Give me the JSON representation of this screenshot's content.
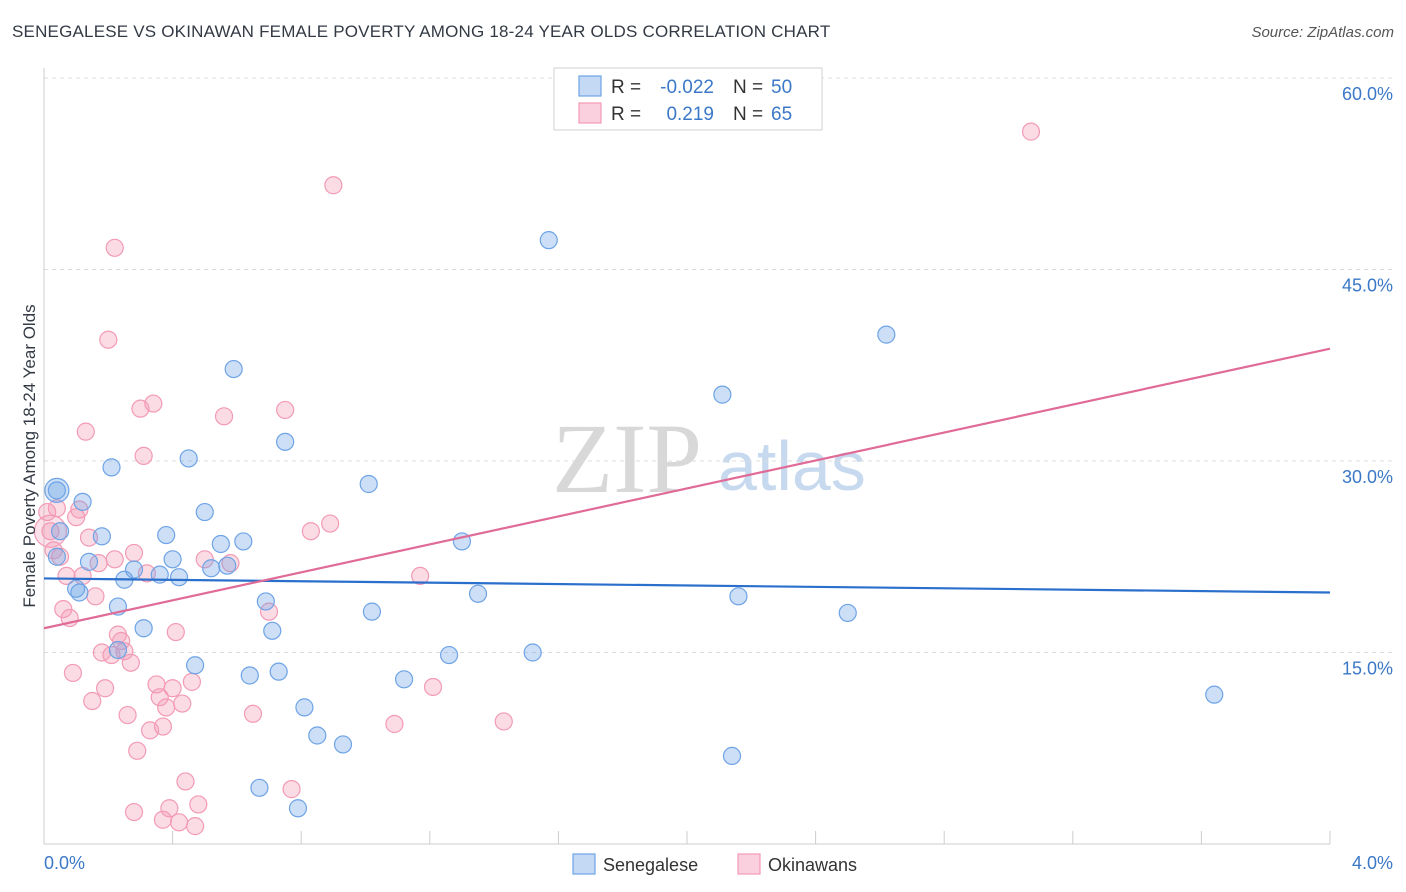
{
  "title": "SENEGALESE VS OKINAWAN FEMALE POVERTY AMONG 18-24 YEAR OLDS CORRELATION CHART",
  "source": "Source: ZipAtlas.com",
  "watermark": {
    "zip": "ZIP",
    "atlas": "atlas"
  },
  "legend": {
    "rows": [
      {
        "r_label": "R =",
        "r_value": "-0.022",
        "n_label": "N =",
        "n_value": "50"
      },
      {
        "r_label": "R =",
        "r_value": "0.219",
        "n_label": "N =",
        "n_value": "65"
      }
    ]
  },
  "chart_data": {
    "type": "scatter",
    "title": "SENEGALESE VS OKINAWAN FEMALE POVERTY AMONG 18-24 YEAR OLDS CORRELATION CHART",
    "xlabel": "",
    "ylabel": "Female Poverty Among 18-24 Year Olds",
    "xlim": [
      0,
      4.0
    ],
    "ylim": [
      0,
      60
    ],
    "x_tick_labels": [
      "0.0%",
      "4.0%"
    ],
    "y_ticks": [
      15,
      30,
      45,
      60
    ],
    "y_tick_labels": [
      "15.0%",
      "30.0%",
      "45.0%",
      "60.0%"
    ],
    "grid": true,
    "colors": {
      "senegalese": "#6ea3e6",
      "okinawans": "#f39ab5",
      "senegalese_line": "#2a6fcb",
      "okinawans_line": "#e06b97"
    },
    "series": [
      {
        "name": "Senegalese",
        "trend": {
          "x0": 0.0,
          "y0": 20.8,
          "x1": 4.0,
          "y1": 19.7
        },
        "points": [
          [
            0.04,
            27.7
          ],
          [
            0.04,
            22.5
          ],
          [
            0.05,
            24.5
          ],
          [
            0.12,
            26.8
          ],
          [
            0.1,
            20.0
          ],
          [
            0.11,
            19.7
          ],
          [
            0.14,
            22.1
          ],
          [
            0.18,
            24.1
          ],
          [
            0.21,
            29.5
          ],
          [
            0.23,
            15.2
          ],
          [
            0.23,
            18.6
          ],
          [
            0.25,
            20.7
          ],
          [
            0.28,
            21.5
          ],
          [
            0.31,
            16.9
          ],
          [
            0.36,
            21.1
          ],
          [
            0.38,
            24.2
          ],
          [
            0.4,
            22.3
          ],
          [
            0.42,
            20.9
          ],
          [
            0.45,
            30.2
          ],
          [
            0.47,
            14.0
          ],
          [
            0.5,
            26.0
          ],
          [
            0.52,
            21.6
          ],
          [
            0.55,
            23.5
          ],
          [
            0.57,
            21.8
          ],
          [
            0.59,
            37.2
          ],
          [
            0.62,
            23.7
          ],
          [
            0.64,
            13.2
          ],
          [
            0.67,
            4.4
          ],
          [
            0.69,
            19.0
          ],
          [
            0.71,
            16.7
          ],
          [
            0.73,
            13.5
          ],
          [
            0.75,
            31.5
          ],
          [
            0.79,
            2.8
          ],
          [
            0.81,
            10.7
          ],
          [
            0.85,
            8.5
          ],
          [
            0.93,
            7.8
          ],
          [
            1.01,
            28.2
          ],
          [
            1.02,
            18.2
          ],
          [
            1.12,
            12.9
          ],
          [
            1.26,
            14.8
          ],
          [
            1.3,
            23.7
          ],
          [
            1.35,
            19.6
          ],
          [
            1.52,
            15.0
          ],
          [
            1.57,
            47.3
          ],
          [
            2.11,
            35.2
          ],
          [
            2.14,
            6.9
          ],
          [
            2.16,
            19.4
          ],
          [
            2.5,
            18.1
          ],
          [
            2.62,
            39.9
          ],
          [
            3.64,
            11.7
          ]
        ]
      },
      {
        "name": "Okinawans",
        "trend": {
          "x0": 0.0,
          "y0": 16.9,
          "x1": 4.0,
          "y1": 38.8
        },
        "points": [
          [
            0.01,
            26.0
          ],
          [
            0.02,
            24.5
          ],
          [
            0.03,
            23.0
          ],
          [
            0.04,
            26.3
          ],
          [
            0.05,
            22.5
          ],
          [
            0.06,
            18.4
          ],
          [
            0.07,
            21.0
          ],
          [
            0.08,
            17.7
          ],
          [
            0.09,
            13.4
          ],
          [
            0.1,
            25.6
          ],
          [
            0.11,
            26.2
          ],
          [
            0.12,
            21.0
          ],
          [
            0.13,
            32.3
          ],
          [
            0.14,
            24.0
          ],
          [
            0.15,
            11.2
          ],
          [
            0.16,
            19.4
          ],
          [
            0.17,
            22.0
          ],
          [
            0.18,
            15.0
          ],
          [
            0.19,
            12.2
          ],
          [
            0.2,
            39.5
          ],
          [
            0.21,
            14.8
          ],
          [
            0.22,
            46.7
          ],
          [
            0.22,
            22.3
          ],
          [
            0.23,
            16.4
          ],
          [
            0.24,
            15.9
          ],
          [
            0.25,
            15.1
          ],
          [
            0.26,
            10.1
          ],
          [
            0.27,
            14.2
          ],
          [
            0.28,
            22.8
          ],
          [
            0.29,
            7.3
          ],
          [
            0.28,
            2.5
          ],
          [
            0.3,
            34.1
          ],
          [
            0.31,
            30.4
          ],
          [
            0.32,
            21.2
          ],
          [
            0.33,
            8.9
          ],
          [
            0.34,
            34.5
          ],
          [
            0.35,
            12.5
          ],
          [
            0.36,
            11.5
          ],
          [
            0.37,
            1.9
          ],
          [
            0.37,
            9.2
          ],
          [
            0.38,
            10.7
          ],
          [
            0.39,
            2.8
          ],
          [
            0.4,
            12.2
          ],
          [
            0.41,
            16.6
          ],
          [
            0.42,
            1.7
          ],
          [
            0.43,
            11.0
          ],
          [
            0.44,
            4.9
          ],
          [
            0.46,
            12.7
          ],
          [
            0.47,
            1.4
          ],
          [
            0.48,
            3.1
          ],
          [
            0.5,
            22.3
          ],
          [
            0.56,
            33.5
          ],
          [
            0.58,
            22.0
          ],
          [
            0.65,
            10.2
          ],
          [
            0.7,
            18.2
          ],
          [
            0.75,
            34.0
          ],
          [
            0.77,
            4.3
          ],
          [
            0.83,
            24.5
          ],
          [
            0.89,
            25.1
          ],
          [
            0.9,
            51.6
          ],
          [
            1.09,
            9.4
          ],
          [
            1.17,
            21.0
          ],
          [
            1.21,
            12.3
          ],
          [
            1.43,
            9.6
          ],
          [
            3.07,
            55.8
          ]
        ]
      }
    ]
  },
  "bottom_legend": [
    {
      "label": "Senegalese"
    },
    {
      "label": "Okinawans"
    }
  ]
}
